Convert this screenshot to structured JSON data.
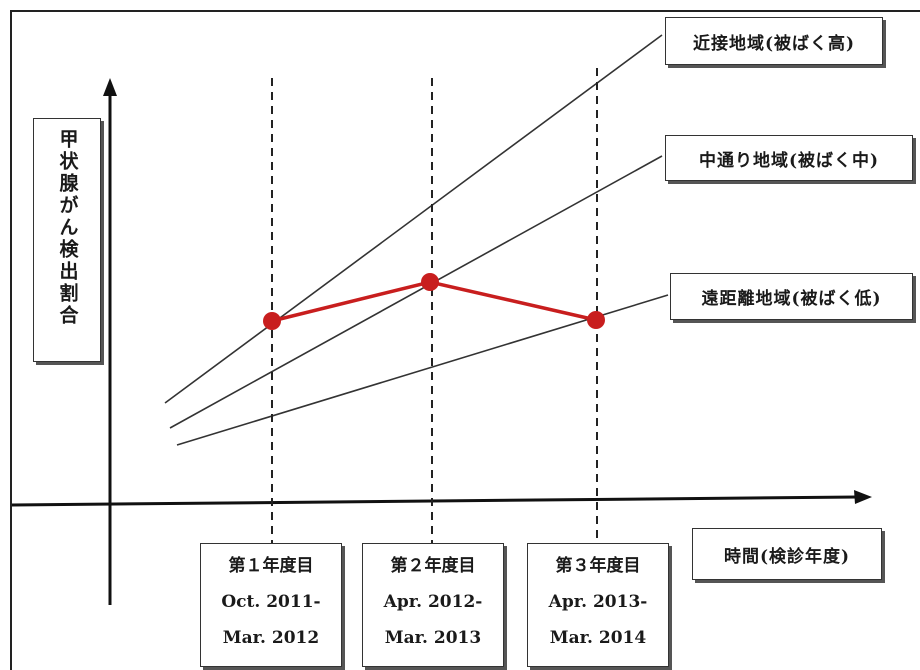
{
  "y_axis_label": "甲状腺がん検出割合",
  "x_axis_label": "時間(検診年度)",
  "regions": [
    {
      "id": "near",
      "label": "近接地域(被ばく高)"
    },
    {
      "id": "middle",
      "label": "中通り地域(被ばく中)"
    },
    {
      "id": "far",
      "label": "遠距離地域(被ばく低)"
    }
  ],
  "periods": [
    {
      "label": "第１年度目",
      "start": "Oct. 2011-",
      "end": "Mar. 2012"
    },
    {
      "label": "第２年度目",
      "start": "Apr. 2012-",
      "end": "Mar. 2013"
    },
    {
      "label": "第３年度目",
      "start": "Apr. 2013-",
      "end": "Mar. 2014"
    }
  ],
  "observed_series": {
    "color": "#c81e1e",
    "points": [
      "near",
      "middle",
      "far"
    ]
  },
  "colors": {
    "lines": "#333333",
    "observed": "#c81e1e"
  }
}
